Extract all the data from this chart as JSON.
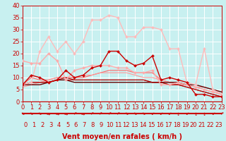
{
  "title": "",
  "xlabel": "Vent moyen/en rafales ( km/h )",
  "xlim": [
    0,
    23
  ],
  "ylim": [
    0,
    40
  ],
  "yticks": [
    0,
    5,
    10,
    15,
    20,
    25,
    30,
    35,
    40
  ],
  "xticks": [
    0,
    1,
    2,
    3,
    4,
    5,
    6,
    7,
    8,
    9,
    10,
    11,
    12,
    13,
    14,
    15,
    16,
    17,
    18,
    19,
    20,
    21,
    22,
    23
  ],
  "bg_color": "#c8f0f0",
  "grid_color": "#ffffff",
  "series": [
    {
      "x": [
        0,
        1,
        2,
        3,
        4,
        5,
        6,
        7,
        8,
        9,
        10,
        11,
        12,
        13,
        14,
        15,
        16,
        17,
        18,
        19,
        20,
        21,
        22,
        23
      ],
      "y": [
        7,
        8,
        21,
        27,
        21,
        25,
        20,
        25,
        34,
        34,
        36,
        35,
        27,
        27,
        31,
        31,
        30,
        22,
        22,
        8,
        7,
        22,
        5,
        3
      ],
      "color": "#ffbbbb",
      "lw": 1.0,
      "marker": "D",
      "ms": 2.0
    },
    {
      "x": [
        0,
        1,
        2,
        3,
        4,
        5,
        6,
        7,
        8,
        9,
        10,
        11,
        12,
        13,
        14,
        15,
        16,
        17,
        18,
        19,
        20,
        21,
        22,
        23
      ],
      "y": [
        17,
        16,
        16,
        20,
        17,
        9,
        13,
        14,
        15,
        15,
        15,
        14,
        14,
        12,
        12,
        13,
        7,
        7,
        8,
        7,
        6,
        5,
        4,
        3
      ],
      "color": "#ffaaaa",
      "lw": 1.0,
      "marker": "D",
      "ms": 2.0
    },
    {
      "x": [
        0,
        1,
        2,
        3,
        4,
        5,
        6,
        7,
        8,
        9,
        10,
        11,
        12,
        13,
        14,
        15,
        16,
        17,
        18,
        19,
        20,
        21,
        22,
        23
      ],
      "y": [
        7,
        11,
        10,
        8,
        9,
        13,
        10,
        11,
        14,
        15,
        21,
        21,
        17,
        15,
        16,
        19,
        9,
        10,
        9,
        8,
        3,
        3,
        2,
        2
      ],
      "color": "#cc0000",
      "lw": 1.0,
      "marker": "D",
      "ms": 2.0
    },
    {
      "x": [
        0,
        1,
        2,
        3,
        4,
        5,
        6,
        7,
        8,
        9,
        10,
        11,
        12,
        13,
        14,
        15,
        16,
        17,
        18,
        19,
        20,
        21,
        22,
        23
      ],
      "y": [
        7,
        10,
        9,
        9,
        10,
        10,
        10,
        10,
        11,
        12,
        13,
        13,
        13,
        12,
        12,
        12,
        9,
        8,
        7,
        7,
        6,
        5,
        4,
        3
      ],
      "color": "#ff6666",
      "lw": 0.8,
      "marker": null,
      "ms": 0
    },
    {
      "x": [
        0,
        1,
        2,
        3,
        4,
        5,
        6,
        7,
        8,
        9,
        10,
        11,
        12,
        13,
        14,
        15,
        16,
        17,
        18,
        19,
        20,
        21,
        22,
        23
      ],
      "y": [
        6,
        7,
        8,
        9,
        10,
        10,
        10,
        11,
        11,
        12,
        12,
        12,
        12,
        11,
        10,
        10,
        9,
        8,
        7,
        7,
        6,
        6,
        5,
        3
      ],
      "color": "#ff9999",
      "lw": 0.8,
      "marker": null,
      "ms": 0
    },
    {
      "x": [
        0,
        1,
        2,
        3,
        4,
        5,
        6,
        7,
        8,
        9,
        10,
        11,
        12,
        13,
        14,
        15,
        16,
        17,
        18,
        19,
        20,
        21,
        22,
        23
      ],
      "y": [
        7,
        8,
        8,
        8,
        9,
        9,
        9,
        9,
        9,
        9,
        9,
        9,
        9,
        9,
        9,
        8,
        8,
        7,
        7,
        6,
        5,
        4,
        3,
        2
      ],
      "color": "#dd2222",
      "lw": 0.8,
      "marker": null,
      "ms": 0
    },
    {
      "x": [
        0,
        1,
        2,
        3,
        4,
        5,
        6,
        7,
        8,
        9,
        10,
        11,
        12,
        13,
        14,
        15,
        16,
        17,
        18,
        19,
        20,
        21,
        22,
        23
      ],
      "y": [
        7,
        7,
        7,
        8,
        9,
        9,
        8,
        8,
        8,
        8,
        8,
        8,
        8,
        8,
        8,
        8,
        8,
        8,
        8,
        7,
        7,
        6,
        5,
        4
      ],
      "color": "#660000",
      "lw": 1.0,
      "marker": null,
      "ms": 0
    },
    {
      "x": [
        0,
        1,
        2,
        3,
        4,
        5,
        6,
        7,
        8,
        9,
        10,
        11,
        12,
        13,
        14,
        15,
        16,
        17,
        18,
        19,
        20,
        21,
        22,
        23
      ],
      "y": [
        7,
        8,
        8,
        8,
        9,
        10,
        9,
        9,
        9,
        9,
        9,
        9,
        9,
        9,
        9,
        8,
        8,
        7,
        7,
        6,
        5,
        4,
        3,
        2
      ],
      "color": "#aa0000",
      "lw": 0.8,
      "marker": null,
      "ms": 0
    }
  ],
  "arrow_chars": [
    "⇘",
    "⇘",
    "⇘",
    "→",
    "→",
    "→",
    "↗",
    "→",
    "↗",
    "↗",
    "↗",
    "↗",
    "⇘",
    "⇘",
    "⇘",
    "↙",
    "↙",
    "↙",
    "↓",
    "↙",
    "↓",
    "↓",
    "↙",
    "↗"
  ],
  "xlabel_color": "#cc0000",
  "xlabel_fontsize": 7,
  "tick_color": "#cc0000",
  "tick_fontsize": 6
}
